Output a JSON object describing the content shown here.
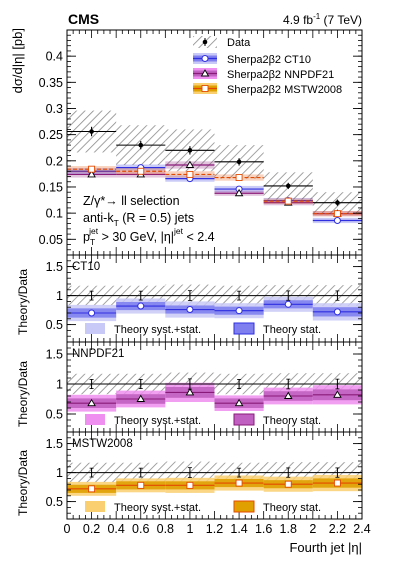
{
  "header": {
    "experiment": "CMS",
    "lumi_prefix": "4.9 fb",
    "lumi_exp": "-1",
    "lumi_suffix": " (7 TeV)"
  },
  "colors": {
    "data": "#000000",
    "ct10": "#2f2fe0",
    "ct10_syst": "#c9c9f7",
    "ct10_stat": "#7f7fef",
    "nnpdf": "#8a1a7a",
    "nnpdf_syst": "#ef8fef",
    "nnpdf_stat": "#c060c0",
    "mstw": "#e34a00",
    "mstw_syst": "#f9cf70",
    "mstw_stat": "#e0a000",
    "hatch": "#8c8c8c"
  },
  "chart_data": [
    {
      "type": "scatter",
      "panel": "main",
      "ylabel": "dσ/d|η| [pb]",
      "ylim": [
        0.02,
        0.45
      ],
      "yticks": [
        0.05,
        0.1,
        0.15,
        0.2,
        0.25,
        0.3,
        0.35,
        0.4
      ],
      "ytick_labels": [
        "0.05",
        "0.1",
        "0.15",
        "0.2",
        "0.25",
        "0.3",
        "0.35",
        "0.4"
      ],
      "bin_edges": [
        0,
        0.4,
        0.8,
        1.2,
        1.6,
        2.0,
        2.4
      ],
      "legend_placement": "top-right",
      "legend": [
        "Data",
        "Sherpa2β2 CT10",
        "Sherpa2β2 NNPDF21",
        "Sherpa2β2 MSTW2008"
      ],
      "annotations": [
        "Z/γ*→ ll selection",
        "anti-k",
        "T",
        " (R = 0.5) jets",
        "p",
        "T",
        "jet",
        " > 30 GeV, |η|",
        "jet",
        " < 2.4"
      ],
      "series": [
        {
          "name": "Data",
          "values": [
            0.256,
            0.23,
            0.22,
            0.198,
            0.152,
            0.12
          ],
          "errors": [
            0.009,
            0.008,
            0.008,
            0.007,
            0.006,
            0.006
          ],
          "syst_band": [
            0.04,
            0.038,
            0.04,
            0.032,
            0.026,
            0.02
          ]
        },
        {
          "name": "Sherpa2β2 CT10",
          "values": [
            0.18,
            0.187,
            0.166,
            0.146,
            0.124,
            0.086
          ],
          "errors": [
            0.006,
            0.006,
            0.006,
            0.006,
            0.005,
            0.005
          ]
        },
        {
          "name": "Sherpa2β2 NNPDF21",
          "values": [
            0.174,
            0.174,
            0.192,
            0.138,
            0.12,
            0.099
          ],
          "errors": [
            0.006,
            0.006,
            0.007,
            0.005,
            0.005,
            0.005
          ]
        },
        {
          "name": "Sherpa2β2 MSTW2008",
          "values": [
            0.184,
            0.18,
            0.174,
            0.168,
            0.123,
            0.099
          ],
          "errors": [
            0.006,
            0.006,
            0.006,
            0.006,
            0.005,
            0.005
          ]
        }
      ]
    },
    {
      "type": "scatter",
      "panel": "ratio",
      "label": "CT10",
      "ylabel": "Theory/Data",
      "ylim": [
        0.2,
        1.7
      ],
      "yticks": [
        0.5,
        1,
        1.5
      ],
      "ytick_labels": [
        "0.5",
        "1",
        "1.5"
      ],
      "bin_edges": [
        0,
        0.4,
        0.8,
        1.2,
        1.6,
        2.0,
        2.4
      ],
      "legend": [
        "Theory syst.+stat.",
        "Theory stat."
      ],
      "ratio": [
        0.7,
        0.82,
        0.76,
        0.74,
        0.85,
        0.72
      ],
      "stat_err": [
        0.08,
        0.07,
        0.07,
        0.07,
        0.07,
        0.08
      ],
      "syst_err": [
        0.14,
        0.13,
        0.14,
        0.13,
        0.13,
        0.15
      ],
      "data_unc": [
        0.17,
        0.17,
        0.19,
        0.17,
        0.18,
        0.18
      ]
    },
    {
      "type": "scatter",
      "panel": "ratio",
      "label": "NNPDF21",
      "ylabel": "Theory/Data",
      "ylim": [
        0.2,
        1.7
      ],
      "yticks": [
        0.5,
        1,
        1.5
      ],
      "ytick_labels": [
        "0.5",
        "1",
        "1.5"
      ],
      "bin_edges": [
        0,
        0.4,
        0.8,
        1.2,
        1.6,
        2.0,
        2.4
      ],
      "legend": [
        "Theory syst.+stat.",
        "Theory stat."
      ],
      "ratio": [
        0.68,
        0.75,
        0.86,
        0.68,
        0.8,
        0.82
      ],
      "stat_err": [
        0.08,
        0.08,
        0.09,
        0.08,
        0.08,
        0.09
      ],
      "syst_err": [
        0.14,
        0.14,
        0.16,
        0.13,
        0.14,
        0.16
      ],
      "data_unc": [
        0.17,
        0.17,
        0.19,
        0.17,
        0.18,
        0.18
      ]
    },
    {
      "type": "scatter",
      "panel": "ratio",
      "label": "MSTW2008",
      "ylabel": "Theory/Data",
      "ylim": [
        0.2,
        1.7
      ],
      "yticks": [
        0.5,
        1,
        1.5
      ],
      "ytick_labels": [
        "0.5",
        "1",
        "1.5"
      ],
      "bin_edges": [
        0,
        0.4,
        0.8,
        1.2,
        1.6,
        2.0,
        2.4
      ],
      "xticks": [
        0,
        0.2,
        0.4,
        0.6,
        0.8,
        1,
        1.2,
        1.4,
        1.6,
        1.8,
        2,
        2.2,
        2.4
      ],
      "xtick_labels": [
        "0",
        "0.2",
        "0.4",
        "0.6",
        "0.8",
        "1",
        "1.2",
        "1.4",
        "1.6",
        "1.8",
        "2",
        "2.2",
        "2.4"
      ],
      "xlabel": "Fourth jet |η|",
      "legend": [
        "Theory syst.+stat.",
        "Theory stat."
      ],
      "ratio": [
        0.72,
        0.78,
        0.78,
        0.82,
        0.8,
        0.82
      ],
      "stat_err": [
        0.07,
        0.07,
        0.07,
        0.07,
        0.07,
        0.08
      ],
      "syst_err": [
        0.12,
        0.12,
        0.13,
        0.13,
        0.13,
        0.14
      ],
      "data_unc": [
        0.17,
        0.17,
        0.19,
        0.17,
        0.18,
        0.18
      ]
    }
  ]
}
